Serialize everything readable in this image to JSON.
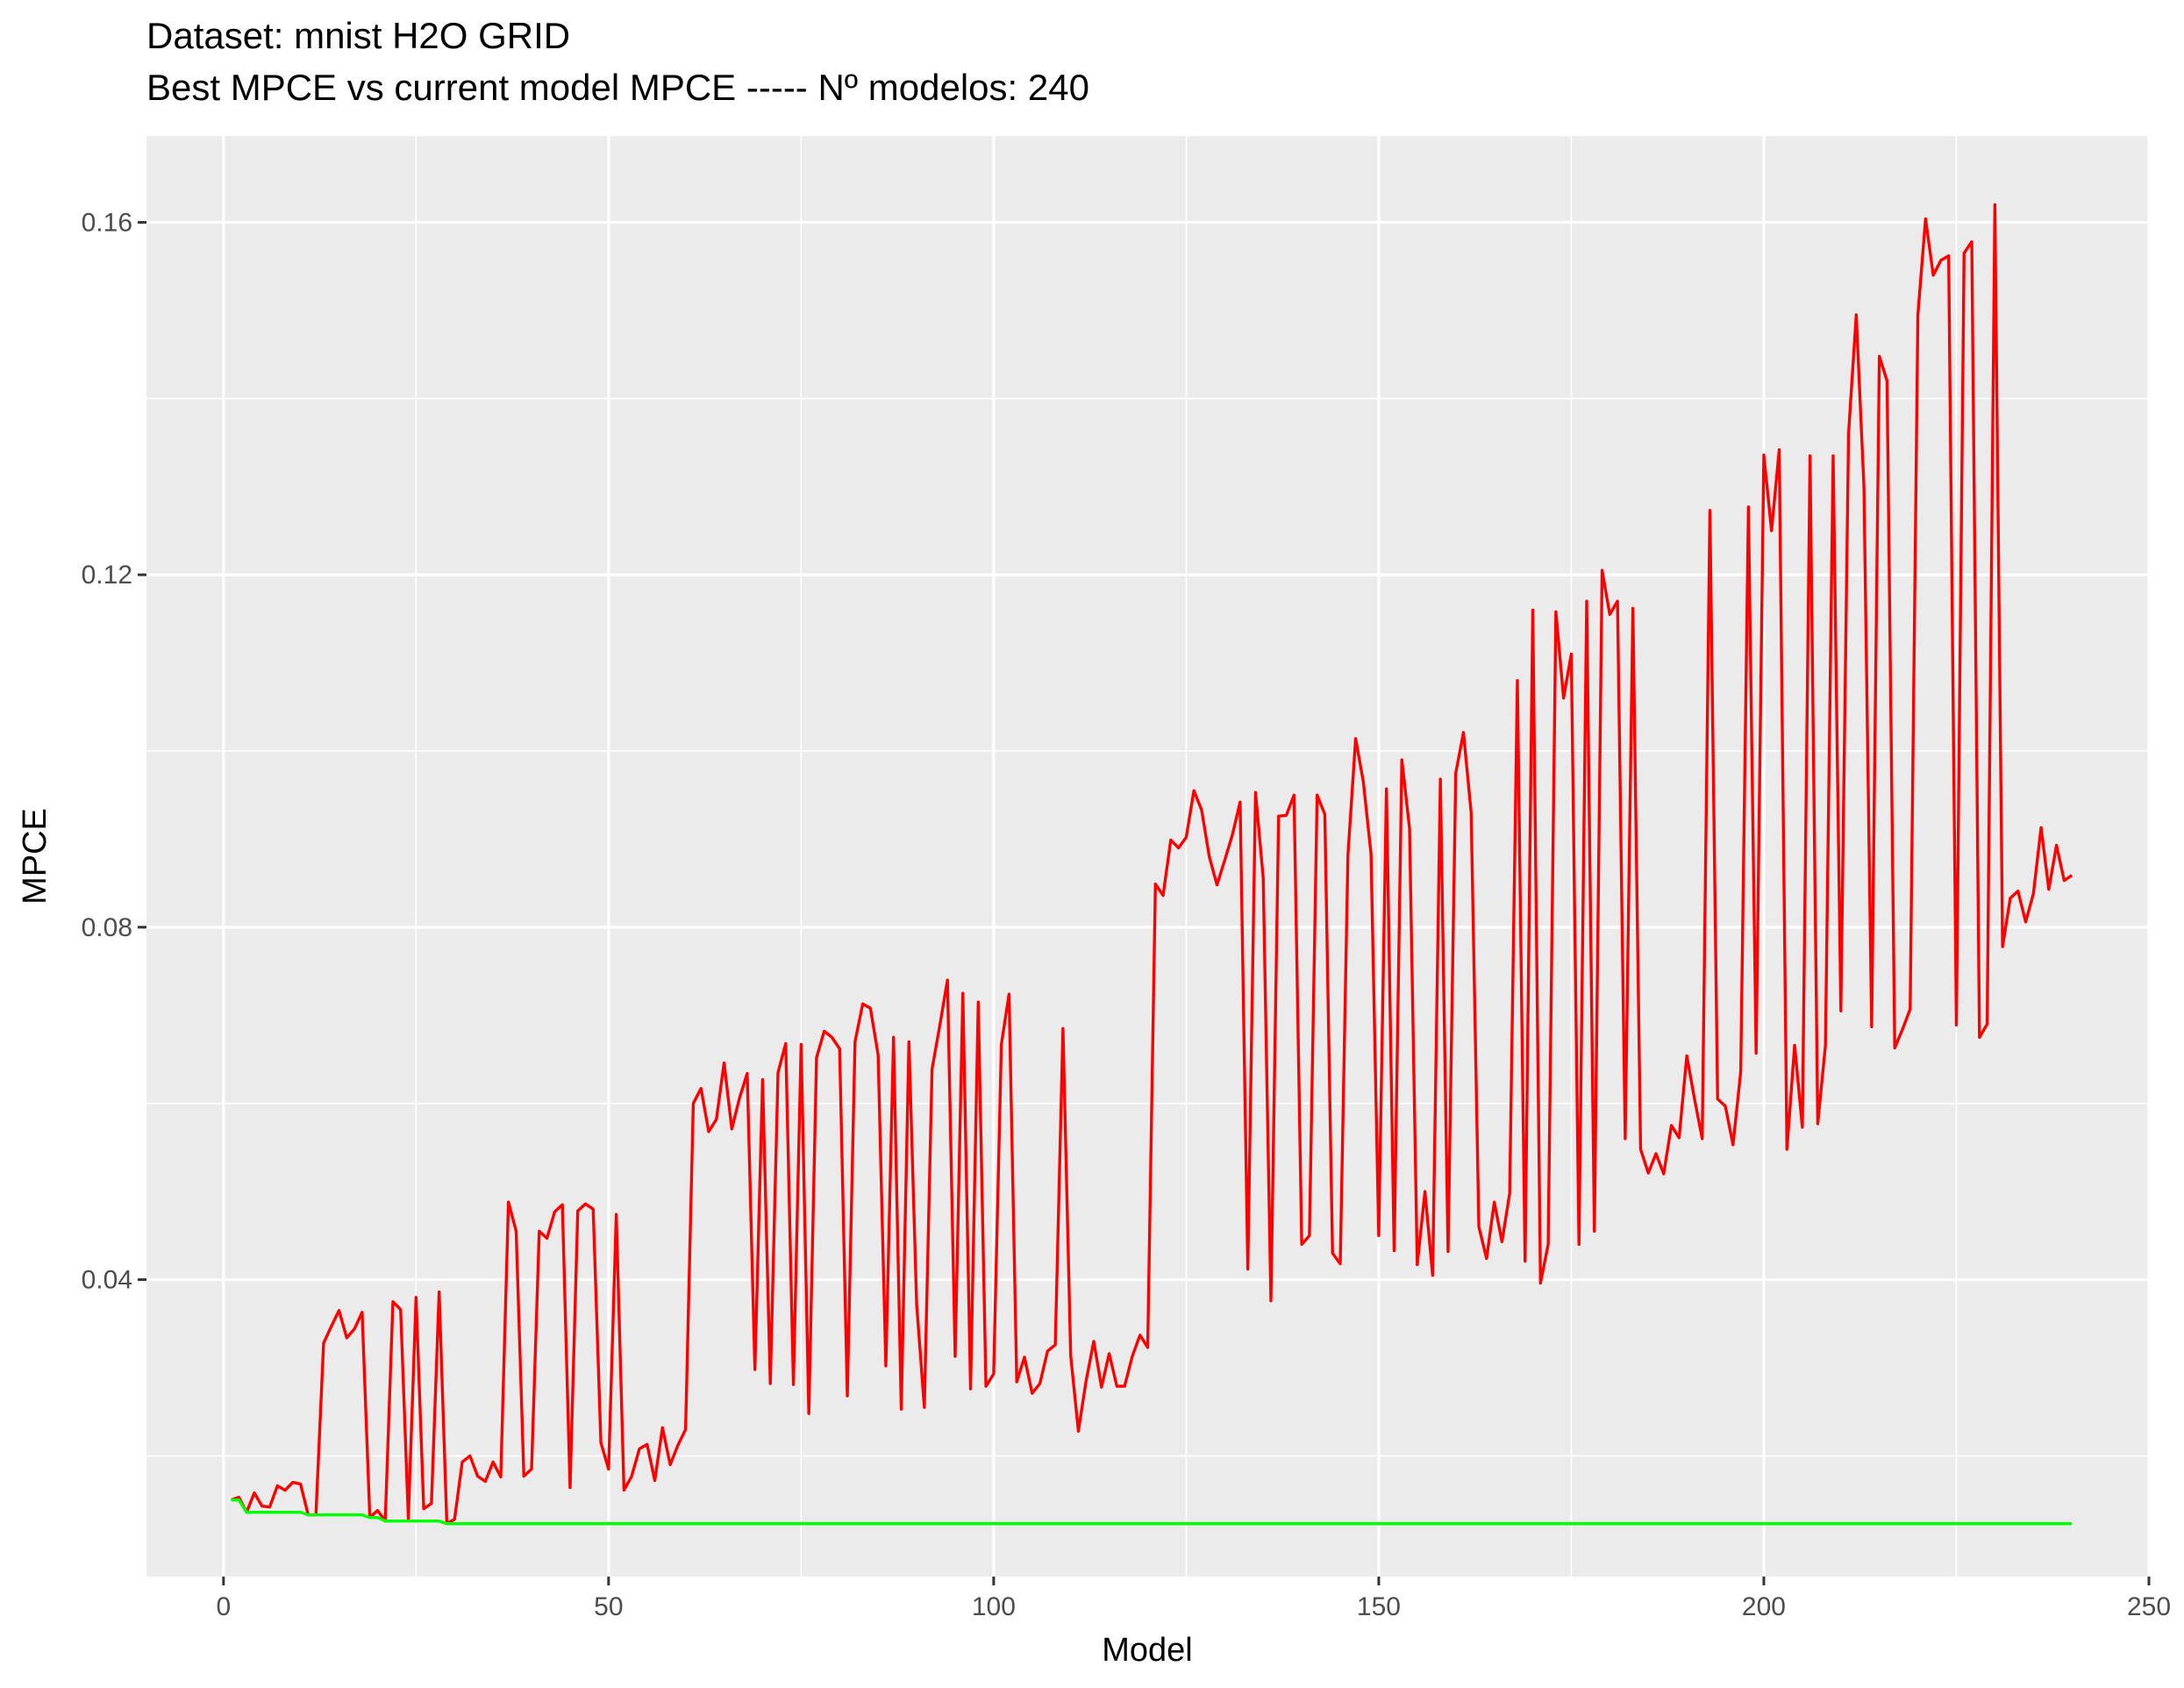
{
  "chart_data": {
    "type": "line",
    "title": "Dataset:  mnist H2O GRID",
    "subtitle": "Best MPCE vs current model MPCE  ----- Nº modelos:  240",
    "xlabel": "Model",
    "ylabel": "MPCE",
    "xlim": [
      -10,
      250
    ],
    "ylim": [
      0.0063,
      0.1698
    ],
    "x_ticks": [
      0,
      50,
      100,
      150,
      200,
      250
    ],
    "x_tick_labels": [
      "0",
      "50",
      "100",
      "150",
      "200",
      "250"
    ],
    "y_ticks": [
      0.04,
      0.08,
      0.12,
      0.16
    ],
    "y_tick_labels": [
      "0.04",
      "0.08",
      "0.12",
      "0.16"
    ],
    "grid": true,
    "legend": "none",
    "colors": {
      "panel": "#ebebeb",
      "grid": "#ffffff",
      "current": "#ff0000",
      "best": "#00ff00"
    },
    "series": [
      {
        "color": "#ff0000",
        "values": [
          0.015,
          0.0153,
          0.0136,
          0.0158,
          0.0143,
          0.0142,
          0.0166,
          0.0161,
          0.017,
          0.0168,
          0.0133,
          0.0133,
          0.0328,
          0.0347,
          0.0365,
          0.0334,
          0.0344,
          0.0363,
          0.013,
          0.0138,
          0.0126,
          0.0375,
          0.0366,
          0.0129,
          0.038,
          0.014,
          0.0146,
          0.0386,
          0.0123,
          0.0128,
          0.0193,
          0.02,
          0.0177,
          0.0171,
          0.0193,
          0.0176,
          0.0488,
          0.0455,
          0.0177,
          0.0185,
          0.0455,
          0.0447,
          0.0477,
          0.0485,
          0.0164,
          0.0478,
          0.0486,
          0.048,
          0.0215,
          0.0185,
          0.0474,
          0.0161,
          0.0177,
          0.0208,
          0.0213,
          0.0172,
          0.0232,
          0.019,
          0.0212,
          0.023,
          0.06,
          0.0617,
          0.0568,
          0.0582,
          0.0646,
          0.0571,
          0.0606,
          0.0634,
          0.0298,
          0.0627,
          0.0282,
          0.0635,
          0.0668,
          0.0281,
          0.0667,
          0.0248,
          0.0652,
          0.0682,
          0.0675,
          0.0662,
          0.0268,
          0.067,
          0.0713,
          0.0708,
          0.0655,
          0.0302,
          0.0675,
          0.0253,
          0.067,
          0.0372,
          0.0255,
          0.0639,
          0.0688,
          0.074,
          0.0313,
          0.0725,
          0.0276,
          0.0715,
          0.0279,
          0.0293,
          0.0667,
          0.0724,
          0.0284,
          0.0312,
          0.0271,
          0.0282,
          0.0319,
          0.0326,
          0.0685,
          0.0314,
          0.0228,
          0.0285,
          0.033,
          0.0278,
          0.0316,
          0.0279,
          0.0279,
          0.0313,
          0.0337,
          0.0323,
          0.0849,
          0.0836,
          0.0899,
          0.089,
          0.0902,
          0.0955,
          0.0933,
          0.088,
          0.0848,
          0.0876,
          0.0905,
          0.0942,
          0.0412,
          0.0953,
          0.0856,
          0.0376,
          0.0926,
          0.0927,
          0.095,
          0.044,
          0.045,
          0.095,
          0.0928,
          0.043,
          0.0418,
          0.0882,
          0.1014,
          0.0965,
          0.0883,
          0.045,
          0.0957,
          0.0433,
          0.099,
          0.0912,
          0.0417,
          0.05,
          0.0405,
          0.0968,
          0.0432,
          0.0975,
          0.1021,
          0.093,
          0.046,
          0.0424,
          0.0488,
          0.0443,
          0.0498,
          0.108,
          0.0421,
          0.116,
          0.0396,
          0.044,
          0.1158,
          0.106,
          0.111,
          0.044,
          0.117,
          0.0455,
          0.1205,
          0.1155,
          0.117,
          0.056,
          0.1162,
          0.0548,
          0.0521,
          0.0543,
          0.052,
          0.0575,
          0.0561,
          0.0654,
          0.0605,
          0.056,
          0.1273,
          0.0605,
          0.0597,
          0.0553,
          0.0636,
          0.1277,
          0.0657,
          0.1336,
          0.125,
          0.1342,
          0.0548,
          0.0666,
          0.0573,
          0.1335,
          0.0577,
          0.0666,
          0.1335,
          0.0705,
          0.136,
          0.1495,
          0.13,
          0.0687,
          0.1448,
          0.142,
          0.0663,
          0.0684,
          0.0707,
          0.1495,
          0.1604,
          0.154,
          0.1557,
          0.1562,
          0.0689,
          0.1565,
          0.1578,
          0.0675,
          0.069,
          0.162,
          0.0778,
          0.0833,
          0.0841,
          0.0806,
          0.0838,
          0.0913,
          0.0843,
          0.0893,
          0.0853,
          0.0859
        ]
      },
      {
        "color": "#00ff00",
        "values": [
          0.015,
          0.015,
          0.0136,
          0.0136,
          0.0136,
          0.0136,
          0.0136,
          0.0136,
          0.0136,
          0.0136,
          0.0133,
          0.0133,
          0.0133,
          0.0133,
          0.0133,
          0.0133,
          0.0133,
          0.0133,
          0.013,
          0.013,
          0.0126,
          0.0126,
          0.0126,
          0.0126,
          0.0126,
          0.0126,
          0.0126,
          0.0126,
          0.0123
        ]
      }
    ]
  }
}
